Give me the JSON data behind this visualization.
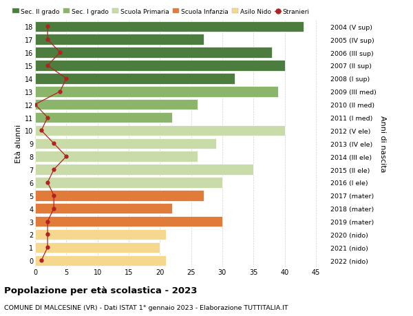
{
  "ages": [
    0,
    1,
    2,
    3,
    4,
    5,
    6,
    7,
    8,
    9,
    10,
    11,
    12,
    13,
    14,
    15,
    16,
    17,
    18
  ],
  "bar_values": [
    21,
    20,
    21,
    30,
    22,
    27,
    30,
    35,
    26,
    29,
    40,
    22,
    26,
    39,
    32,
    40,
    38,
    27,
    43
  ],
  "stranieri": [
    1,
    2,
    2,
    2,
    3,
    3,
    2,
    3,
    5,
    3,
    1,
    2,
    0,
    4,
    5,
    2,
    4,
    2,
    2
  ],
  "right_labels": [
    "2022 (nido)",
    "2021 (nido)",
    "2020 (nido)",
    "2019 (mater)",
    "2018 (mater)",
    "2017 (mater)",
    "2016 (I ele)",
    "2015 (II ele)",
    "2014 (III ele)",
    "2013 (IV ele)",
    "2012 (V ele)",
    "2011 (I med)",
    "2010 (II med)",
    "2009 (III med)",
    "2008 (I sup)",
    "2007 (II sup)",
    "2006 (III sup)",
    "2005 (IV sup)",
    "2004 (V sup)"
  ],
  "bar_colors": [
    "#f5d78e",
    "#f5d78e",
    "#f5d78e",
    "#e07b39",
    "#e07b39",
    "#e07b39",
    "#c8dba8",
    "#c8dba8",
    "#c8dba8",
    "#c8dba8",
    "#c8dba8",
    "#8bb56a",
    "#8bb56a",
    "#8bb56a",
    "#4d7c3f",
    "#4d7c3f",
    "#4d7c3f",
    "#4d7c3f",
    "#4d7c3f"
  ],
  "legend_labels": [
    "Sec. II grado",
    "Sec. I grado",
    "Scuola Primaria",
    "Scuola Infanzia",
    "Asilo Nido",
    "Stranieri"
  ],
  "legend_colors": [
    "#4d7c3f",
    "#8bb56a",
    "#c8dba8",
    "#e07b39",
    "#f5d78e",
    "#b22222"
  ],
  "title_bold": "Popolazione per età scolastica - 2023",
  "title_sub": "COMUNE DI MALCESINE (VR) - Dati ISTAT 1° gennaio 2023 - Elaborazione TUTTITALIA.IT",
  "ylabel_left": "Età alunni",
  "ylabel_right": "Anni di nascita",
  "xlim": [
    0,
    47
  ],
  "xticks": [
    0,
    5,
    10,
    15,
    20,
    25,
    30,
    35,
    40,
    45
  ],
  "stranieri_color": "#b22222",
  "background_color": "#ffffff",
  "grid_color": "#cccccc",
  "bar_height": 0.82,
  "bar_edge_color": "#ffffff",
  "bar_edge_width": 0.5
}
